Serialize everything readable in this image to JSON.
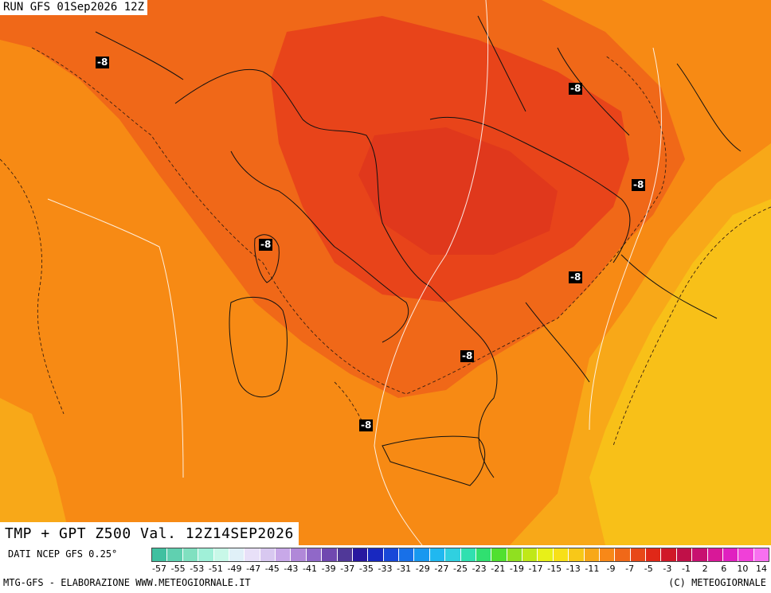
{
  "header": {
    "run": "RUN GFS 01Sep2026 12Z"
  },
  "map_title": "TMP + GPT Z500 Val. 12Z14SEP2026",
  "source": "DATI NCEP GFS 0.25°",
  "footer": {
    "left": "MTG-GFS - ELABORAZIONE WWW.METEOGIORNALE.IT",
    "right": "(C) METEOGIORNALE"
  },
  "isotherm_labels": [
    "-8",
    "-8",
    "-8",
    "-8",
    "-8",
    "-8",
    "-8"
  ],
  "colorbar": {
    "labels": [
      "-57",
      "-55",
      "-53",
      "-51",
      "-49",
      "-47",
      "-45",
      "-43",
      "-41",
      "-39",
      "-37",
      "-35",
      "-33",
      "-31",
      "-29",
      "-27",
      "-25",
      "-23",
      "-21",
      "-19",
      "-17",
      "-15",
      "-13",
      "-11",
      "-9",
      "-7",
      "-5",
      "-3",
      "-1",
      "2",
      "6",
      "10",
      "14"
    ],
    "colors": [
      "#40c0a0",
      "#60d0b0",
      "#80e0c0",
      "#a0f0d8",
      "#c8f8e8",
      "#e0f0f8",
      "#e8e0f8",
      "#d8c8f0",
      "#c8a8e8",
      "#b088d8",
      "#9068c8",
      "#7048b0",
      "#503898",
      "#2818a0",
      "#1828c0",
      "#1848d8",
      "#1870e8",
      "#1898f0",
      "#20b8f0",
      "#30d0e0",
      "#30e0b0",
      "#30e070",
      "#50e030",
      "#90e020",
      "#c0e818",
      "#e8f018",
      "#f8e018",
      "#f8c818",
      "#f8a818",
      "#f88818",
      "#f06818",
      "#e84818",
      "#e02818",
      "#d01828",
      "#c01048",
      "#c81070",
      "#d81898",
      "#e020c0",
      "#f040d8",
      "#f870f0"
    ],
    "map_colors": {
      "very_warm": "#e8441a",
      "warm": "#f06818",
      "mild": "#f78a14",
      "cool": "#f8a818",
      "cooler": "#f8c018"
    }
  }
}
